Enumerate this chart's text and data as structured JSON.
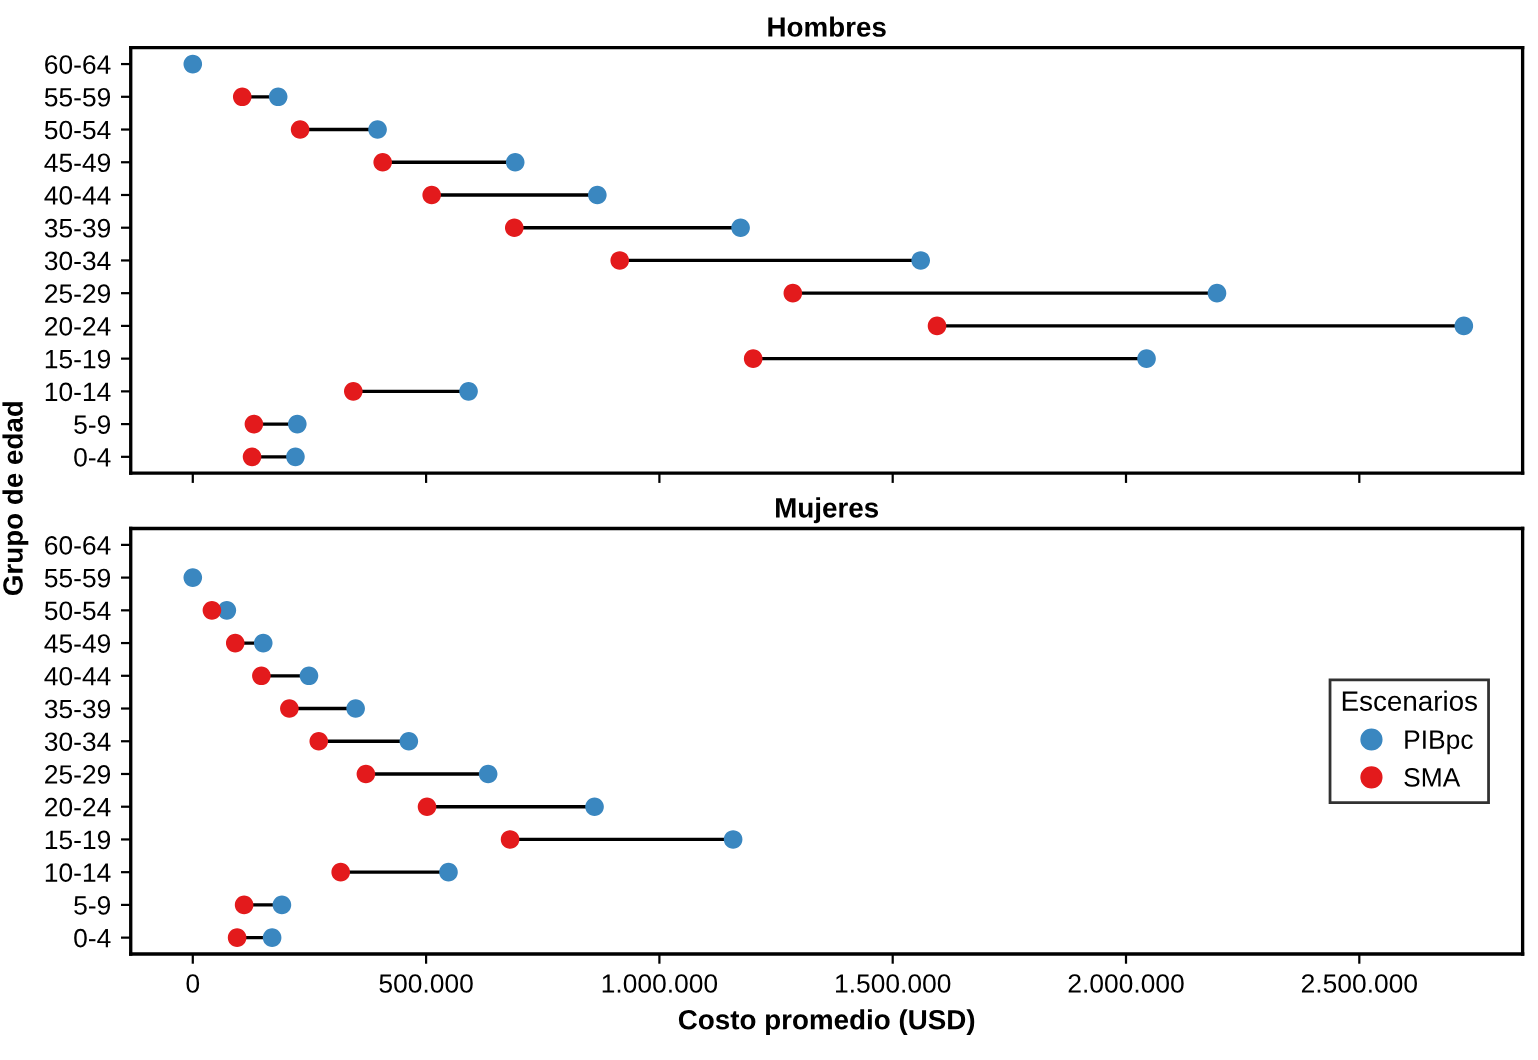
{
  "chart_data": [
    {
      "type": "scatter",
      "orientation": "horizontal",
      "title": "Hombres",
      "ylabel": "Grupo de edad",
      "categories": [
        "60-64",
        "55-59",
        "50-54",
        "45-49",
        "40-44",
        "35-39",
        "30-34",
        "25-29",
        "20-24",
        "15-19",
        "10-14",
        "5-9",
        "0-4"
      ],
      "series": [
        {
          "color": "#3a87c0",
          "values": [
            0,
            183000,
            396000,
            691000,
            867000,
            1174000,
            1560000,
            2195000,
            2724000,
            2044000,
            591000,
            224000,
            220000
          ]
        },
        {
          "color": "#e31a1c",
          "values": [
            null,
            106000,
            230000,
            407000,
            512000,
            689000,
            915000,
            1286000,
            1595000,
            1201000,
            344000,
            131000,
            127000
          ]
        }
      ],
      "xlim": [
        -133000,
        2850000
      ],
      "xticks": [
        {
          "value": 0,
          "label": null
        },
        {
          "value": 500000,
          "label": null
        },
        {
          "value": 1000000,
          "label": null
        },
        {
          "value": 1500000,
          "label": null
        },
        {
          "value": 2000000,
          "label": null
        },
        {
          "value": 2500000,
          "label": null
        }
      ],
      "tick_labels": "y",
      "grid": false,
      "legend": false,
      "marker": "circle"
    },
    {
      "type": "scatter",
      "orientation": "horizontal",
      "title": "Mujeres",
      "xlabel": "Costo promedio (USD)",
      "legend_title": "Escenarios",
      "categories": [
        "60-64",
        "55-59",
        "50-54",
        "45-49",
        "40-44",
        "35-39",
        "30-34",
        "25-29",
        "20-24",
        "15-19",
        "10-14",
        "5-9",
        "0-4"
      ],
      "series": [
        {
          "name": "PIBpc",
          "color": "#3a87c0",
          "values": [
            null,
            0,
            73000,
            151000,
            249000,
            349000,
            463000,
            633000,
            861000,
            1158000,
            548000,
            191000,
            170000
          ]
        },
        {
          "name": "SMA",
          "color": "#e31a1c",
          "values": [
            null,
            null,
            41000,
            91000,
            147000,
            207000,
            270000,
            371000,
            502000,
            680000,
            317000,
            110000,
            95000
          ]
        }
      ],
      "xlim": [
        -133000,
        2850000
      ],
      "xticks": [
        {
          "value": 0,
          "label": "0"
        },
        {
          "value": 500000,
          "label": "500.000"
        },
        {
          "value": 1000000,
          "label": "1.000.000"
        },
        {
          "value": 1500000,
          "label": "1.500.000"
        },
        {
          "value": 2000000,
          "label": "2.000.000"
        },
        {
          "value": 2500000,
          "label": "2.500.000"
        }
      ],
      "grid": false,
      "legend": "right",
      "marker": "circle"
    }
  ]
}
